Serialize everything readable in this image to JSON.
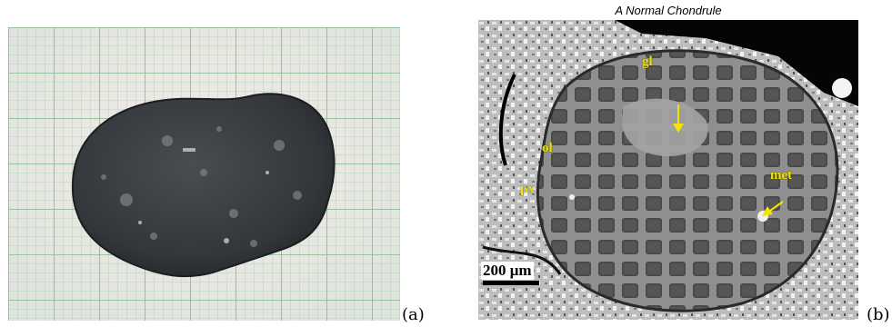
{
  "panel_a": {
    "caption": "(a)"
  },
  "panel_b": {
    "title": "A Normal Chondrule",
    "caption": "(b)",
    "labels": {
      "gl": "gl",
      "ol": "ol",
      "px": "px",
      "met": "met"
    },
    "scale_bar": "200 μm"
  }
}
